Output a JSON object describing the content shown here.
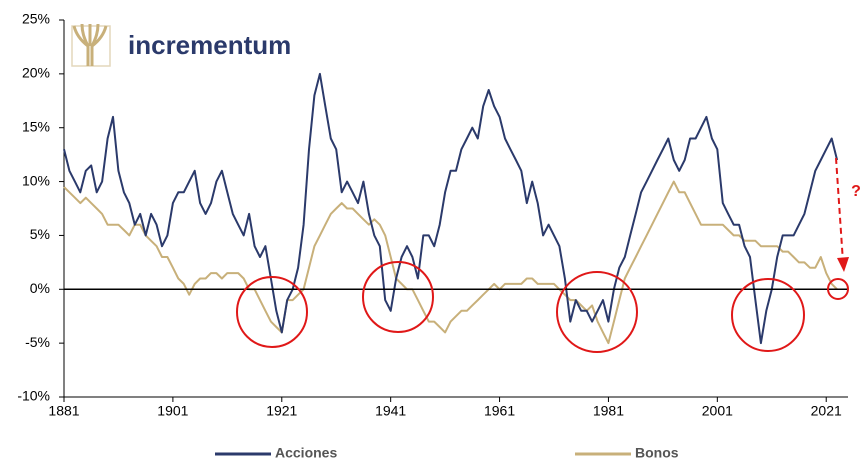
{
  "logo": "incrementum",
  "chart_data": {
    "type": "line",
    "annotation": "?",
    "x": [
      1881,
      1882,
      1883,
      1884,
      1885,
      1886,
      1887,
      1888,
      1889,
      1890,
      1891,
      1892,
      1893,
      1894,
      1895,
      1896,
      1897,
      1898,
      1899,
      1900,
      1901,
      1902,
      1903,
      1904,
      1905,
      1906,
      1907,
      1908,
      1909,
      1910,
      1911,
      1912,
      1913,
      1914,
      1915,
      1916,
      1917,
      1918,
      1919,
      1920,
      1921,
      1922,
      1923,
      1924,
      1925,
      1926,
      1927,
      1928,
      1929,
      1930,
      1931,
      1932,
      1933,
      1934,
      1935,
      1936,
      1937,
      1938,
      1939,
      1940,
      1941,
      1942,
      1943,
      1944,
      1945,
      1946,
      1947,
      1948,
      1949,
      1950,
      1951,
      1952,
      1953,
      1954,
      1955,
      1956,
      1957,
      1958,
      1959,
      1960,
      1961,
      1962,
      1963,
      1964,
      1965,
      1966,
      1967,
      1968,
      1969,
      1970,
      1971,
      1972,
      1973,
      1974,
      1975,
      1976,
      1977,
      1978,
      1979,
      1980,
      1981,
      1982,
      1983,
      1984,
      1985,
      1986,
      1987,
      1988,
      1989,
      1990,
      1991,
      1992,
      1993,
      1994,
      1995,
      1996,
      1997,
      1998,
      1999,
      2000,
      2001,
      2002,
      2003,
      2004,
      2005,
      2006,
      2007,
      2008,
      2009,
      2010,
      2011,
      2012,
      2013,
      2014,
      2015,
      2016,
      2017,
      2018,
      2019,
      2020,
      2021,
      2022,
      2023
    ],
    "series": [
      {
        "name": "Acciones",
        "color": "#2b3a6b",
        "values": [
          13,
          11,
          10,
          9,
          11,
          11.5,
          9,
          10,
          14,
          16,
          11,
          9,
          8,
          6,
          7,
          5,
          7,
          6,
          4,
          5,
          8,
          9,
          9,
          10,
          11,
          8,
          7,
          8,
          10,
          11,
          9,
          7,
          6,
          5,
          7,
          4,
          3,
          4,
          1,
          -2,
          -4,
          -1,
          0,
          2,
          6,
          13,
          18,
          20,
          17,
          14,
          13,
          9,
          10,
          9,
          8,
          10,
          7,
          5,
          4,
          -1,
          -2,
          1,
          3,
          4,
          3,
          1,
          5,
          5,
          4,
          6,
          9,
          11,
          11,
          13,
          14,
          15,
          14,
          17,
          18.5,
          17,
          16,
          14,
          13,
          12,
          11,
          8,
          10,
          8,
          5,
          6,
          5,
          4,
          1,
          -3,
          -1,
          -2,
          -2,
          -3,
          -2,
          -1,
          -3,
          0,
          2,
          3,
          5,
          7,
          9,
          10,
          11,
          12,
          13,
          14,
          12,
          11,
          12,
          14,
          14,
          15,
          16,
          14,
          13,
          8,
          7,
          6,
          6,
          4,
          3,
          -1,
          -5,
          -2,
          0,
          3,
          5,
          5,
          5,
          6,
          7,
          9,
          11,
          12,
          13,
          14,
          12
        ]
      },
      {
        "name": "Bonos",
        "color": "#c8b07a",
        "values": [
          9.5,
          9,
          8.5,
          8,
          8.5,
          8,
          7.5,
          7,
          6,
          6,
          6,
          5.5,
          5,
          6,
          6,
          5,
          4.5,
          4,
          3,
          3,
          2,
          1,
          0.5,
          -0.5,
          0.5,
          1,
          1,
          1.5,
          1.5,
          1,
          1.5,
          1.5,
          1.5,
          1,
          0,
          0,
          -1,
          -2,
          -3,
          -3.5,
          -4,
          -1,
          -1,
          -0.5,
          0,
          2,
          4,
          5,
          6,
          7,
          7.5,
          8,
          7.5,
          7.5,
          7,
          6.5,
          6,
          6.5,
          6,
          5,
          3,
          1,
          0.5,
          0,
          0,
          -1,
          -2,
          -3,
          -3,
          -3.5,
          -4,
          -3,
          -2.5,
          -2,
          -2,
          -1.5,
          -1,
          -0.5,
          0,
          0.5,
          0,
          0.5,
          0.5,
          0.5,
          0.5,
          1,
          1,
          0.5,
          0.5,
          0.5,
          0.5,
          0,
          -0.5,
          -1,
          -1,
          -1.5,
          -2,
          -1.5,
          -3,
          -4,
          -5,
          -3,
          -1,
          1,
          2,
          3,
          4,
          5,
          6,
          7,
          8,
          9,
          10,
          9,
          9,
          8,
          7,
          6,
          6,
          6,
          6,
          6,
          5.5,
          5,
          5,
          4.5,
          4.5,
          4.5,
          4,
          4,
          4,
          4,
          3.5,
          3.5,
          3,
          2.5,
          2.5,
          2,
          2,
          3,
          1.5,
          0.5,
          0
        ]
      }
    ],
    "xlim": [
      1881,
      2025
    ],
    "xticks": [
      1881,
      1901,
      1921,
      1941,
      1961,
      1981,
      2001,
      2021
    ],
    "ylim": [
      -10,
      25
    ],
    "yticks": [
      {
        "value": -10,
        "label": "-10%"
      },
      {
        "value": -5,
        "label": "-5%"
      },
      {
        "value": 0,
        "label": "0%"
      },
      {
        "value": 5,
        "label": "5%"
      },
      {
        "value": 10,
        "label": "10%"
      },
      {
        "value": 15,
        "label": "15%"
      },
      {
        "value": 20,
        "label": "20%"
      },
      {
        "value": 25,
        "label": "25%"
      }
    ]
  }
}
